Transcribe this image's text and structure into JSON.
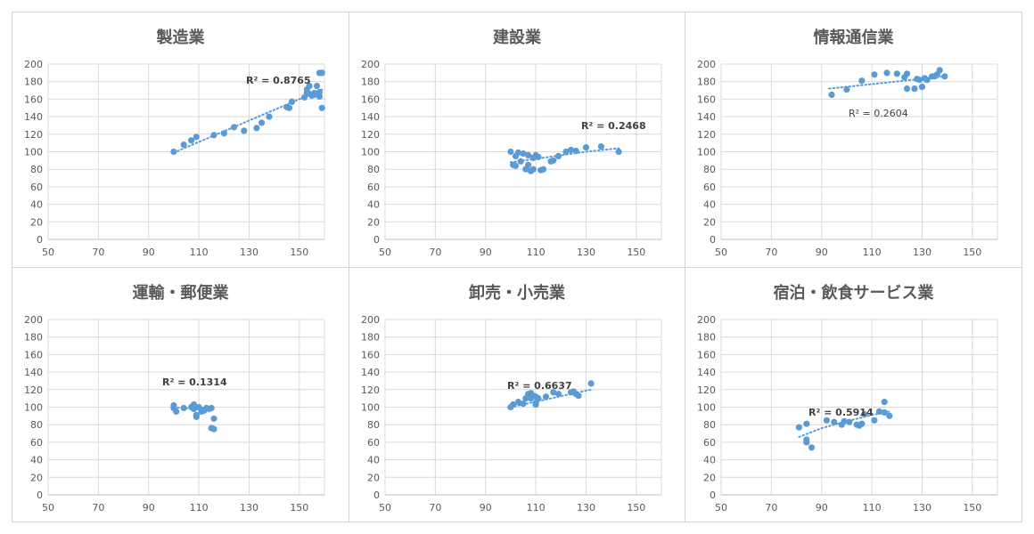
{
  "chart_data": [
    {
      "type": "scatter",
      "title": "製造業",
      "xlim": [
        50,
        160
      ],
      "ylim": [
        0,
        200
      ],
      "xticks": [
        "50",
        "70",
        "90",
        "110",
        "130",
        "150"
      ],
      "yticks": [
        "0",
        "20",
        "40",
        "60",
        "80",
        "100",
        "120",
        "140",
        "160",
        "180",
        "200"
      ],
      "grid": true,
      "trendline": {
        "type": "linear",
        "from": [
          100,
          99
        ],
        "to": [
          159,
          171
        ]
      },
      "r2_label": "R² = 0.8765",
      "points": [
        [
          100,
          100
        ],
        [
          104,
          108
        ],
        [
          107,
          113
        ],
        [
          109,
          117
        ],
        [
          116,
          119
        ],
        [
          120,
          121
        ],
        [
          124,
          128
        ],
        [
          128,
          124
        ],
        [
          133,
          127
        ],
        [
          135,
          133
        ],
        [
          138,
          140
        ],
        [
          145,
          151
        ],
        [
          146,
          150
        ],
        [
          147,
          157
        ],
        [
          152,
          162
        ],
        [
          153,
          167
        ],
        [
          153,
          171
        ],
        [
          154,
          175
        ],
        [
          155,
          164
        ],
        [
          156,
          167
        ],
        [
          157,
          175
        ],
        [
          157,
          166
        ],
        [
          158,
          163
        ],
        [
          158,
          168
        ],
        [
          158,
          190
        ],
        [
          159,
          190
        ],
        [
          159,
          150
        ],
        [
          154,
          166
        ],
        [
          156,
          165
        ]
      ]
    },
    {
      "type": "scatter",
      "title": "建設業",
      "xlim": [
        50,
        160
      ],
      "ylim": [
        0,
        200
      ],
      "xticks": [
        "50",
        "70",
        "90",
        "110",
        "130",
        "150"
      ],
      "yticks": [
        "0",
        "20",
        "40",
        "60",
        "80",
        "100",
        "120",
        "140",
        "160",
        "180",
        "200"
      ],
      "grid": true,
      "trendline": {
        "type": "polynomial",
        "points": [
          [
            100,
            88
          ],
          [
            110,
            92
          ],
          [
            120,
            96
          ],
          [
            130,
            100
          ],
          [
            143,
            104
          ]
        ]
      },
      "r2_label": "R² = 0.2468",
      "points": [
        [
          100,
          100
        ],
        [
          101,
          85
        ],
        [
          102,
          84
        ],
        [
          102,
          95
        ],
        [
          103,
          99
        ],
        [
          104,
          89
        ],
        [
          105,
          98
        ],
        [
          106,
          80
        ],
        [
          107,
          85
        ],
        [
          107,
          96
        ],
        [
          108,
          78
        ],
        [
          109,
          80
        ],
        [
          109,
          93
        ],
        [
          110,
          95
        ],
        [
          110,
          96
        ],
        [
          111,
          94
        ],
        [
          112,
          79
        ],
        [
          113,
          80
        ],
        [
          116,
          89
        ],
        [
          117,
          90
        ],
        [
          119,
          95
        ],
        [
          122,
          100
        ],
        [
          124,
          102
        ],
        [
          126,
          101
        ],
        [
          130,
          105
        ],
        [
          136,
          106
        ],
        [
          143,
          100
        ]
      ]
    },
    {
      "type": "scatter",
      "title": "情報通信業",
      "xlim": [
        50,
        160
      ],
      "ylim": [
        0,
        200
      ],
      "xticks": [
        "50",
        "70",
        "90",
        "110",
        "130",
        "150"
      ],
      "yticks": [
        "0",
        "20",
        "40",
        "60",
        "80",
        "100",
        "120",
        "140",
        "160",
        "180",
        "200"
      ],
      "grid": true,
      "trendline": {
        "type": "linear",
        "from": [
          93,
          172
        ],
        "to": [
          139,
          186
        ]
      },
      "r2_label": "R² = 0.2604",
      "points": [
        [
          94,
          165
        ],
        [
          100,
          171
        ],
        [
          106,
          181
        ],
        [
          111,
          188
        ],
        [
          116,
          190
        ],
        [
          120,
          189
        ],
        [
          123,
          185
        ],
        [
          124,
          189
        ],
        [
          124,
          172
        ],
        [
          127,
          172
        ],
        [
          128,
          183
        ],
        [
          129,
          182
        ],
        [
          130,
          174
        ],
        [
          131,
          184
        ],
        [
          132,
          182
        ],
        [
          134,
          186
        ],
        [
          135,
          186
        ],
        [
          136,
          188
        ],
        [
          137,
          193
        ],
        [
          139,
          186
        ]
      ]
    },
    {
      "type": "scatter",
      "title": "運輸・郵便業",
      "xlim": [
        50,
        160
      ],
      "ylim": [
        0,
        200
      ],
      "xticks": [
        "50",
        "70",
        "90",
        "110",
        "130",
        "150"
      ],
      "yticks": [
        "0",
        "20",
        "40",
        "60",
        "80",
        "100",
        "120",
        "140",
        "160",
        "180",
        "200"
      ],
      "grid": true,
      "trendline": {
        "type": "linear",
        "from": [
          100,
          100
        ],
        "to": [
          115,
          96
        ]
      },
      "r2_label": "R² = 0.1314",
      "points": [
        [
          100,
          102
        ],
        [
          100,
          99
        ],
        [
          101,
          95
        ],
        [
          104,
          99
        ],
        [
          107,
          100
        ],
        [
          108,
          103
        ],
        [
          108,
          98
        ],
        [
          109,
          89
        ],
        [
          109,
          91
        ],
        [
          110,
          100
        ],
        [
          111,
          95
        ],
        [
          111,
          97
        ],
        [
          112,
          96
        ],
        [
          113,
          99
        ],
        [
          114,
          98
        ],
        [
          115,
          99
        ],
        [
          115,
          76
        ],
        [
          116,
          75
        ],
        [
          116,
          87
        ]
      ]
    },
    {
      "type": "scatter",
      "title": "卸売・小売業",
      "xlim": [
        50,
        160
      ],
      "ylim": [
        0,
        200
      ],
      "xticks": [
        "50",
        "70",
        "90",
        "110",
        "130",
        "150"
      ],
      "yticks": [
        "0",
        "20",
        "40",
        "60",
        "80",
        "100",
        "120",
        "140",
        "160",
        "180",
        "200"
      ],
      "grid": true,
      "trendline": {
        "type": "linear",
        "from": [
          100,
          100
        ],
        "to": [
          132,
          120
        ]
      },
      "r2_label": "R² = 0.6637",
      "points": [
        [
          100,
          100
        ],
        [
          101,
          103
        ],
        [
          103,
          106
        ],
        [
          105,
          104
        ],
        [
          106,
          110
        ],
        [
          107,
          113
        ],
        [
          107,
          115
        ],
        [
          108,
          110
        ],
        [
          108,
          116
        ],
        [
          109,
          113
        ],
        [
          110,
          103
        ],
        [
          110,
          105
        ],
        [
          110,
          112
        ],
        [
          111,
          110
        ],
        [
          114,
          112
        ],
        [
          117,
          117
        ],
        [
          119,
          115
        ],
        [
          124,
          117
        ],
        [
          125,
          118
        ],
        [
          126,
          115
        ],
        [
          127,
          113
        ],
        [
          132,
          127
        ]
      ]
    },
    {
      "type": "scatter",
      "title": "宿泊・飲食サービス業",
      "xlim": [
        50,
        160
      ],
      "ylim": [
        0,
        200
      ],
      "xticks": [
        "50",
        "70",
        "90",
        "110",
        "130",
        "150"
      ],
      "yticks": [
        "0",
        "20",
        "40",
        "60",
        "80",
        "100",
        "120",
        "140",
        "160",
        "180",
        "200"
      ],
      "grid": true,
      "trendline": {
        "type": "polynomial",
        "points": [
          [
            81,
            66
          ],
          [
            90,
            76
          ],
          [
            100,
            84
          ],
          [
            110,
            91
          ],
          [
            117,
            95
          ]
        ]
      },
      "r2_label": "R² = 0.5914",
      "points": [
        [
          81,
          77
        ],
        [
          84,
          60
        ],
        [
          84,
          63
        ],
        [
          84,
          81
        ],
        [
          86,
          54
        ],
        [
          92,
          85
        ],
        [
          95,
          83
        ],
        [
          98,
          80
        ],
        [
          99,
          84
        ],
        [
          101,
          83
        ],
        [
          104,
          80
        ],
        [
          105,
          79
        ],
        [
          106,
          81
        ],
        [
          107,
          92
        ],
        [
          111,
          85
        ],
        [
          113,
          95
        ],
        [
          115,
          106
        ],
        [
          115,
          94
        ],
        [
          117,
          90
        ]
      ]
    }
  ]
}
